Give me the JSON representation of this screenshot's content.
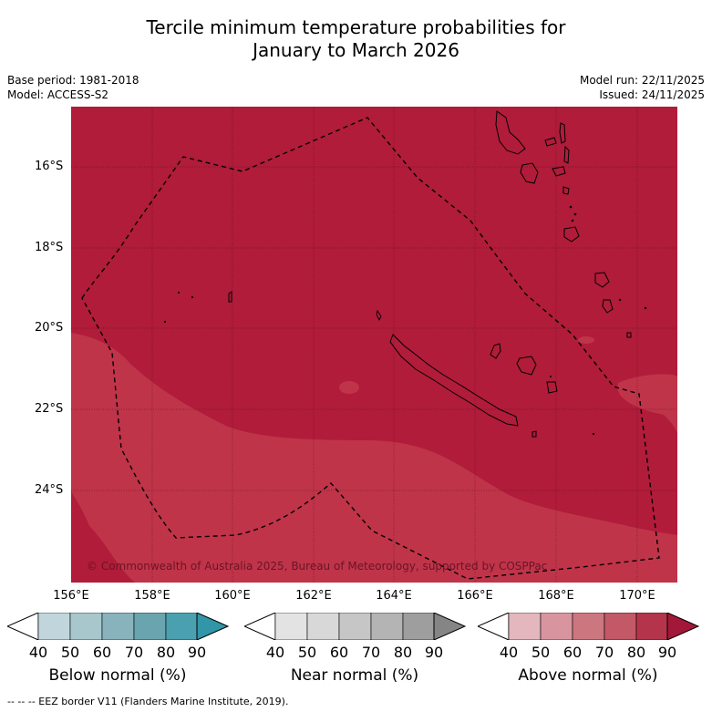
{
  "title": {
    "line1": "Tercile minimum temperature probabilities for",
    "line2": "January to March 2026"
  },
  "meta": {
    "base_period": "Base period: 1981-2018",
    "model": "Model: ACCESS-S2",
    "model_run": "Model run: 22/11/2025",
    "issued": "Issued: 24/11/2025"
  },
  "map": {
    "lat_labels": [
      "16°S",
      "18°S",
      "20°S",
      "22°S",
      "24°S"
    ],
    "lon_labels": [
      "156°E",
      "158°E",
      "160°E",
      "162°E",
      "164°E",
      "166°E",
      "168°E",
      "170°E"
    ],
    "copyright": "© Commonwealth of Australia 2025, Bureau of Meteorology, supported by COSPPac",
    "colors": {
      "above_80_90": "#b01c3a",
      "above_70_80": "#bf3449"
    }
  },
  "colorbars": [
    {
      "label": "Below normal (%)",
      "colors": [
        "#c0d6dc",
        "#a7c7cd",
        "#88b3bd",
        "#6aa4af",
        "#4ba0b0",
        "#3096a8"
      ]
    },
    {
      "label": "Near normal (%)",
      "colors": [
        "#e3e3e3",
        "#d8d8d8",
        "#c6c6c6",
        "#b4b4b4",
        "#9e9e9e",
        "#858585"
      ]
    },
    {
      "label": "Above normal (%)",
      "colors": [
        "#e4b6bd",
        "#d9959f",
        "#cc7680",
        "#c35867",
        "#b4354b",
        "#a31738"
      ]
    }
  ],
  "colorbar_ticks": [
    "40",
    "50",
    "60",
    "70",
    "80",
    "90"
  ],
  "footnote": "--  --  -- EEZ border V11 (Flanders Marine Institute, 2019)."
}
